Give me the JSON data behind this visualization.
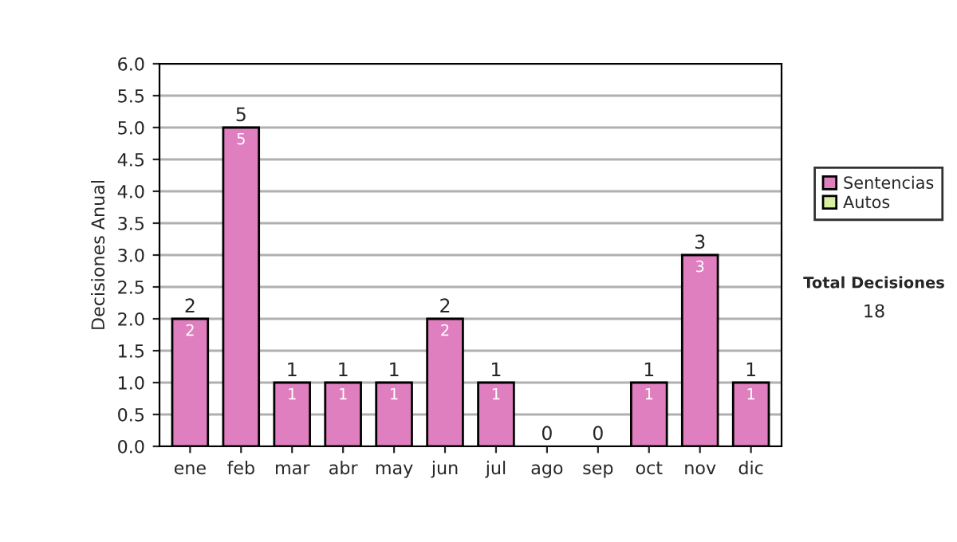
{
  "chart_data": {
    "type": "bar",
    "ylabel": "Decisiones Anual",
    "stacked": true,
    "categories": [
      "ene",
      "feb",
      "mar",
      "abr",
      "may",
      "jun",
      "jul",
      "ago",
      "sep",
      "oct",
      "nov",
      "dic"
    ],
    "series": [
      {
        "name": "Sentencias",
        "color": "#e07fbf",
        "values": [
          2,
          5,
          1,
          1,
          1,
          2,
          1,
          0,
          0,
          1,
          3,
          1
        ],
        "value_labels": [
          "2",
          "5",
          "1",
          "1",
          "1",
          "2",
          "1",
          null,
          null,
          "1",
          "3",
          "1"
        ]
      },
      {
        "name": "Autos",
        "color": "#d8eea0",
        "values": [
          0,
          0,
          0,
          0,
          0,
          0,
          0,
          0,
          0,
          0,
          0,
          0
        ]
      }
    ],
    "totals": [
      "2",
      "5",
      "1",
      "1",
      "1",
      "2",
      "1",
      "0",
      "0",
      "1",
      "3",
      "1"
    ],
    "ylim": [
      0,
      6
    ],
    "yticks": [
      {
        "value": 0,
        "label": "0.0"
      },
      {
        "value": 0.5,
        "label": "0.5"
      },
      {
        "value": 1,
        "label": "1.0"
      },
      {
        "value": 1.5,
        "label": "1.5"
      },
      {
        "value": 2,
        "label": "2.0"
      },
      {
        "value": 2.5,
        "label": "2.5"
      },
      {
        "value": 3,
        "label": "3.0"
      },
      {
        "value": 3.5,
        "label": "3.5"
      },
      {
        "value": 4,
        "label": "4.0"
      },
      {
        "value": 4.5,
        "label": "4.5"
      },
      {
        "value": 5,
        "label": "5.0"
      },
      {
        "value": 5.5,
        "label": "5.5"
      },
      {
        "value": 6,
        "label": "6.0"
      }
    ],
    "grid": "y",
    "legend": "right",
    "annotations": [
      "Total Decisiones",
      "18"
    ]
  }
}
